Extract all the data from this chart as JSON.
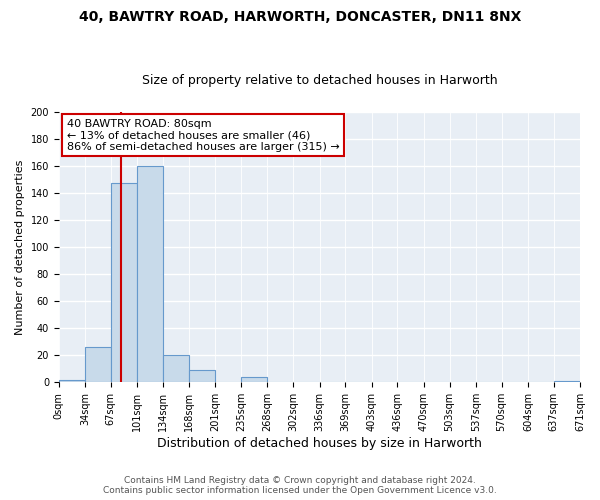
{
  "title1": "40, BAWTRY ROAD, HARWORTH, DONCASTER, DN11 8NX",
  "title2": "Size of property relative to detached houses in Harworth",
  "xlabel": "Distribution of detached houses by size in Harworth",
  "ylabel": "Number of detached properties",
  "bin_edges": [
    0,
    34,
    67,
    101,
    134,
    168,
    201,
    235,
    268,
    302,
    336,
    369,
    403,
    436,
    470,
    503,
    537,
    570,
    604,
    637,
    671
  ],
  "bar_heights": [
    2,
    26,
    147,
    160,
    20,
    9,
    0,
    4,
    0,
    0,
    0,
    0,
    0,
    0,
    0,
    0,
    0,
    0,
    0,
    1
  ],
  "bar_color": "#c8daea",
  "bar_edgecolor": "#6699cc",
  "vline_x": 80,
  "vline_color": "#cc0000",
  "ylim": [
    0,
    200
  ],
  "yticks": [
    0,
    20,
    40,
    60,
    80,
    100,
    120,
    140,
    160,
    180,
    200
  ],
  "annotation_lines": [
    "40 BAWTRY ROAD: 80sqm",
    "← 13% of detached houses are smaller (46)",
    "86% of semi-detached houses are larger (315) →"
  ],
  "annotation_box_facecolor": "#ffffff",
  "annotation_box_edgecolor": "#cc0000",
  "footer_line1": "Contains HM Land Registry data © Crown copyright and database right 2024.",
  "footer_line2": "Contains public sector information licensed under the Open Government Licence v3.0.",
  "fig_facecolor": "#ffffff",
  "plot_facecolor": "#e8eef5",
  "grid_color": "#ffffff",
  "title1_fontsize": 10,
  "title2_fontsize": 9,
  "xlabel_fontsize": 9,
  "ylabel_fontsize": 8,
  "tick_fontsize": 7,
  "annotation_fontsize": 8,
  "footer_fontsize": 6.5
}
